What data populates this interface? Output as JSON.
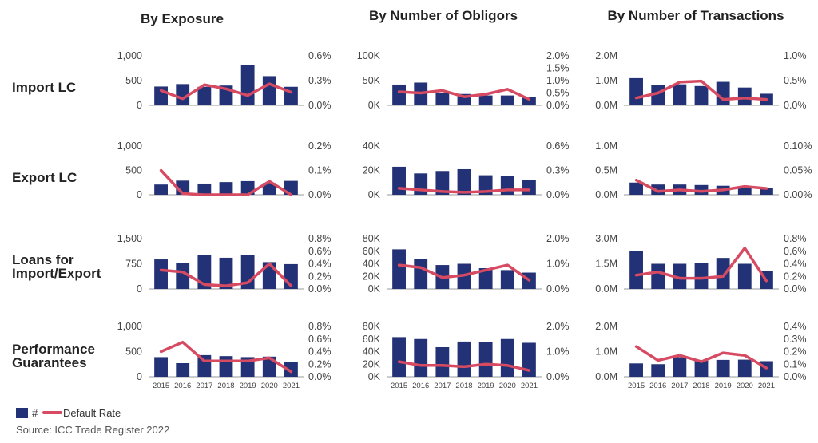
{
  "column_titles": [
    "By Exposure",
    "By Number of Obligors",
    "By Number of Transactions"
  ],
  "row_labels": [
    [
      "Import LC"
    ],
    [
      "Export LC"
    ],
    [
      "Loans for",
      "Import/Export"
    ],
    [
      "Performance",
      "Guarantees"
    ]
  ],
  "legend": {
    "bar_label": "#",
    "line_label": "Default Rate"
  },
  "source": "Source: ICC Trade Register 2022",
  "colors": {
    "bar": "#233276",
    "line": "#d64a62",
    "axis": "#999999"
  },
  "chart_data": [
    {
      "type": "bar+line",
      "row": "Import LC",
      "column": "By Exposure",
      "categories": [
        "2015",
        "2016",
        "2017",
        "2018",
        "2019",
        "2020",
        "2021"
      ],
      "bar_values": [
        380,
        430,
        375,
        400,
        820,
        590,
        375
      ],
      "left_ylim": [
        0,
        1000
      ],
      "left_ticks": [
        "1,000",
        "500",
        "0"
      ],
      "line_values": [
        0.18,
        0.08,
        0.25,
        0.2,
        0.12,
        0.26,
        0.16
      ],
      "right_ylim": [
        0,
        0.6
      ],
      "right_ticks": [
        "0.6%",
        "0.3%",
        "0.0%"
      ]
    },
    {
      "type": "bar+line",
      "row": "Import LC",
      "column": "By Number of Obligors",
      "categories": [
        "2015",
        "2016",
        "2017",
        "2018",
        "2019",
        "2020",
        "2021"
      ],
      "bar_values": [
        42000,
        46000,
        25000,
        23000,
        20000,
        20000,
        17000
      ],
      "left_ylim": [
        0,
        100000
      ],
      "left_ticks": [
        "100K",
        "50K",
        "0K"
      ],
      "line_values": [
        0.55,
        0.5,
        0.6,
        0.35,
        0.45,
        0.65,
        0.25
      ],
      "right_ylim": [
        0,
        2.0
      ],
      "right_ticks": [
        "2.0%",
        "1.5%",
        "1.0%",
        "0.5%",
        "0.0%"
      ]
    },
    {
      "type": "bar+line",
      "row": "Import LC",
      "column": "By Number of Transactions",
      "categories": [
        "2015",
        "2016",
        "2017",
        "2018",
        "2019",
        "2020",
        "2021"
      ],
      "bar_values": [
        1100000,
        820000,
        850000,
        780000,
        950000,
        720000,
        470000
      ],
      "left_ylim": [
        0,
        2000000
      ],
      "left_ticks": [
        "2.0M",
        "1.0M",
        "0.0M"
      ],
      "line_values": [
        0.15,
        0.25,
        0.47,
        0.49,
        0.12,
        0.15,
        0.12
      ],
      "right_ylim": [
        0,
        1.0
      ],
      "right_ticks": [
        "1.0%",
        "0.5%",
        "0.0%"
      ]
    },
    {
      "type": "bar+line",
      "row": "Export LC",
      "column": "By Exposure",
      "categories": [
        "2015",
        "2016",
        "2017",
        "2018",
        "2019",
        "2020",
        "2021"
      ],
      "bar_values": [
        210,
        290,
        230,
        260,
        280,
        240,
        285
      ],
      "left_ylim": [
        0,
        1000
      ],
      "left_ticks": [
        "1,000",
        "500",
        "0"
      ],
      "line_values": [
        0.1,
        0.005,
        0.0,
        0.0,
        0.0,
        0.055,
        0.0
      ],
      "right_ylim": [
        0,
        0.2
      ],
      "right_ticks": [
        "0.2%",
        "0.1%",
        "0.0%"
      ]
    },
    {
      "type": "bar+line",
      "row": "Export LC",
      "column": "By Number of Obligors",
      "categories": [
        "2015",
        "2016",
        "2017",
        "2018",
        "2019",
        "2020",
        "2021"
      ],
      "bar_values": [
        23000,
        17500,
        19500,
        21000,
        16000,
        15500,
        12000
      ],
      "left_ylim": [
        0,
        40000
      ],
      "left_ticks": [
        "40K",
        "20K",
        "0K"
      ],
      "line_values": [
        0.08,
        0.06,
        0.04,
        0.03,
        0.04,
        0.06,
        0.06
      ],
      "right_ylim": [
        0,
        0.6
      ],
      "right_ticks": [
        "0.6%",
        "0.3%",
        "0.0%"
      ]
    },
    {
      "type": "bar+line",
      "row": "Export LC",
      "column": "By Number of Transactions",
      "categories": [
        "2015",
        "2016",
        "2017",
        "2018",
        "2019",
        "2020",
        "2021"
      ],
      "bar_values": [
        250000,
        210000,
        210000,
        200000,
        185000,
        160000,
        135000
      ],
      "left_ylim": [
        0,
        1000000
      ],
      "left_ticks": [
        "1.0M",
        "0.5M",
        "0.0M"
      ],
      "line_values": [
        0.03,
        0.007,
        0.01,
        0.007,
        0.01,
        0.017,
        0.013
      ],
      "right_ylim": [
        0,
        0.1
      ],
      "right_ticks": [
        "0.10%",
        "0.05%",
        "0.00%"
      ]
    },
    {
      "type": "bar+line",
      "row": "Loans for Import/Export",
      "column": "By Exposure",
      "categories": [
        "2015",
        "2016",
        "2017",
        "2018",
        "2019",
        "2020",
        "2021"
      ],
      "bar_values": [
        880,
        770,
        1020,
        930,
        1000,
        800,
        740
      ],
      "left_ylim": [
        0,
        1500
      ],
      "left_ticks": [
        "1,500",
        "750",
        "0"
      ],
      "line_values": [
        0.3,
        0.27,
        0.07,
        0.05,
        0.1,
        0.4,
        0.05
      ],
      "right_ylim": [
        0,
        0.8
      ],
      "right_ticks": [
        "0.8%",
        "0.6%",
        "0.4%",
        "0.2%",
        "0.0%"
      ]
    },
    {
      "type": "bar+line",
      "row": "Loans for Import/Export",
      "column": "By Number of Obligors",
      "categories": [
        "2015",
        "2016",
        "2017",
        "2018",
        "2019",
        "2020",
        "2021"
      ],
      "bar_values": [
        63000,
        48000,
        38000,
        40000,
        33000,
        30000,
        26000
      ],
      "left_ylim": [
        0,
        80000
      ],
      "left_ticks": [
        "80K",
        "60K",
        "40K",
        "20K",
        "0K"
      ],
      "line_values": [
        0.95,
        0.85,
        0.45,
        0.55,
        0.75,
        0.95,
        0.35
      ],
      "right_ylim": [
        0,
        2.0
      ],
      "right_ticks": [
        "2.0%",
        "1.0%",
        "0.0%"
      ]
    },
    {
      "type": "bar+line",
      "row": "Loans for Import/Export",
      "column": "By Number of Transactions",
      "categories": [
        "2015",
        "2016",
        "2017",
        "2018",
        "2019",
        "2020",
        "2021"
      ],
      "bar_values": [
        2250000,
        1500000,
        1500000,
        1550000,
        1850000,
        1500000,
        1050000
      ],
      "left_ylim": [
        0,
        3000000
      ],
      "left_ticks": [
        "3.0M",
        "1.5M",
        "0.0M"
      ],
      "line_values": [
        0.22,
        0.27,
        0.17,
        0.17,
        0.2,
        0.65,
        0.13
      ],
      "right_ylim": [
        0,
        0.8
      ],
      "right_ticks": [
        "0.8%",
        "0.6%",
        "0.4%",
        "0.2%",
        "0.0%"
      ]
    },
    {
      "type": "bar+line",
      "row": "Performance Guarantees",
      "column": "By Exposure",
      "categories": [
        "2015",
        "2016",
        "2017",
        "2018",
        "2019",
        "2020",
        "2021"
      ],
      "bar_values": [
        390,
        270,
        430,
        410,
        390,
        400,
        300
      ],
      "left_ylim": [
        0,
        1000
      ],
      "left_ticks": [
        "1,000",
        "500",
        "0"
      ],
      "line_values": [
        0.4,
        0.55,
        0.25,
        0.25,
        0.25,
        0.3,
        0.08
      ],
      "right_ylim": [
        0,
        0.8
      ],
      "right_ticks": [
        "0.8%",
        "0.6%",
        "0.4%",
        "0.2%",
        "0.0%"
      ]
    },
    {
      "type": "bar+line",
      "row": "Performance Guarantees",
      "column": "By Number of Obligors",
      "categories": [
        "2015",
        "2016",
        "2017",
        "2018",
        "2019",
        "2020",
        "2021"
      ],
      "bar_values": [
        63000,
        60000,
        47000,
        56000,
        55000,
        60000,
        54000
      ],
      "left_ylim": [
        0,
        80000
      ],
      "left_ticks": [
        "80K",
        "60K",
        "40K",
        "20K",
        "0K"
      ],
      "line_values": [
        0.6,
        0.45,
        0.45,
        0.4,
        0.5,
        0.45,
        0.25
      ],
      "right_ylim": [
        0,
        2.0
      ],
      "right_ticks": [
        "2.0%",
        "1.0%",
        "0.0%"
      ]
    },
    {
      "type": "bar+line",
      "row": "Performance Guarantees",
      "column": "By Number of Transactions",
      "categories": [
        "2015",
        "2016",
        "2017",
        "2018",
        "2019",
        "2020",
        "2021"
      ],
      "bar_values": [
        530000,
        500000,
        780000,
        640000,
        670000,
        680000,
        620000
      ],
      "left_ylim": [
        0,
        2000000
      ],
      "left_ticks": [
        "2.0M",
        "1.0M",
        "0.0M"
      ],
      "line_values": [
        0.24,
        0.13,
        0.17,
        0.12,
        0.19,
        0.17,
        0.07
      ],
      "right_ylim": [
        0,
        0.4
      ],
      "right_ticks": [
        "0.4%",
        "0.3%",
        "0.2%",
        "0.1%",
        "0.0%"
      ]
    }
  ]
}
